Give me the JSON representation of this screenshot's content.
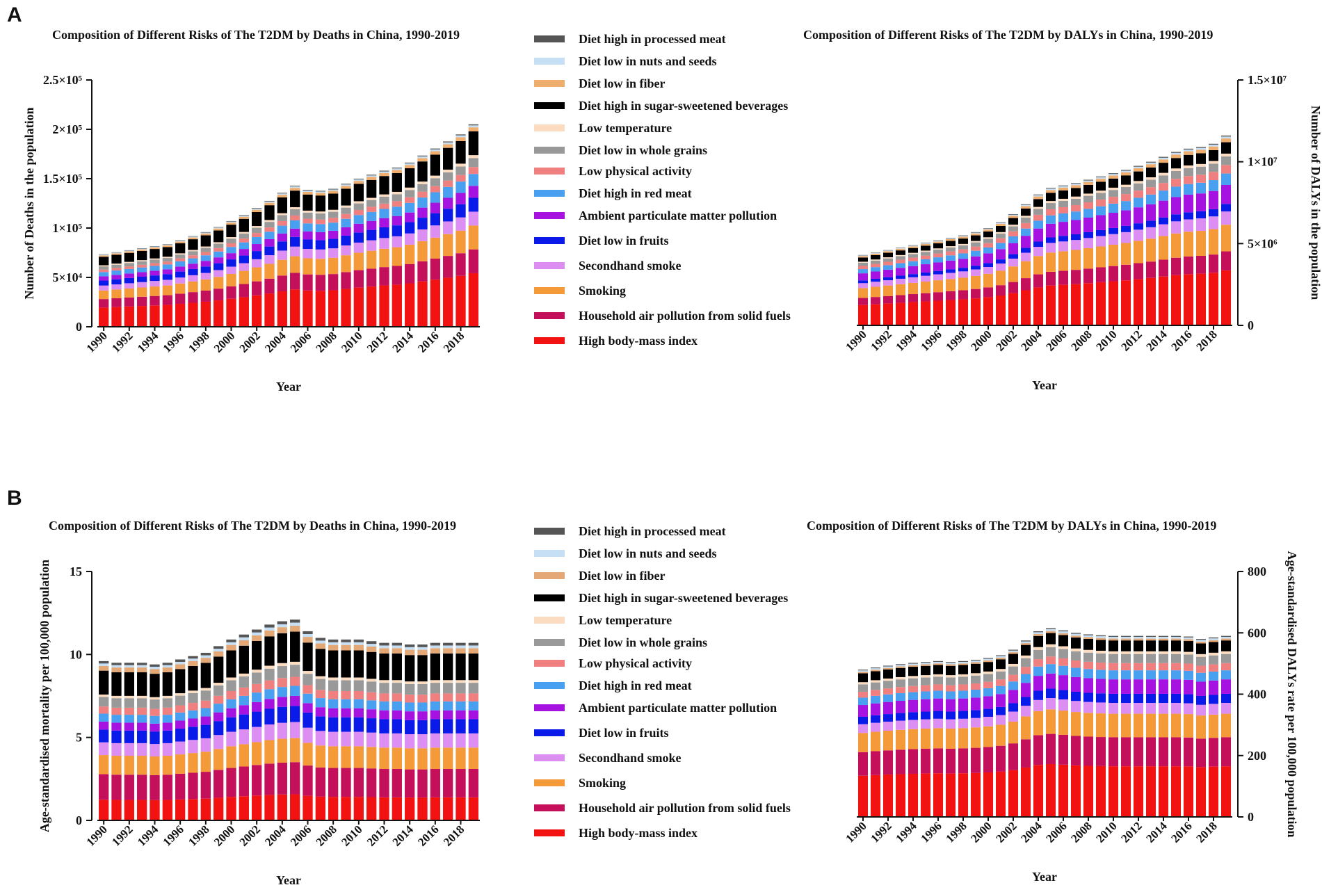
{
  "panels": [
    {
      "letter": "A"
    },
    {
      "letter": "B"
    }
  ],
  "legend_items": [
    {
      "label": "Diet high in processed meat",
      "color": "#555555"
    },
    {
      "label": "Diet low in nuts and seeds",
      "color": "#c6dff5"
    },
    {
      "label": "Diet low in fiber",
      "color": "#f0ae6e"
    },
    {
      "label": "Diet high in sugar-sweetened beverages",
      "color": "#000000"
    },
    {
      "label": "Low temperature",
      "color": "#fbdcc1"
    },
    {
      "label": "Diet low in whole grains",
      "color": "#999999"
    },
    {
      "label": "Low physical activity",
      "color": "#f08080"
    },
    {
      "label": "Diet high in red meat",
      "color": "#4aa0f0"
    },
    {
      "label": "Ambient particulate matter pollution",
      "color": "#a612e0"
    },
    {
      "label": "Diet low in fruits",
      "color": "#0a1ae8"
    },
    {
      "label": "Secondhand smoke",
      "color": "#dc8ef2"
    },
    {
      "label": "Smoking",
      "color": "#f49a38"
    },
    {
      "label": "Household air pollution from solid fuels",
      "color": "#c4105a"
    },
    {
      "label": "High body-mass index",
      "color": "#f21212"
    }
  ],
  "legend_items_b": [
    {
      "label": "Diet high in processed meat",
      "color": "#555555"
    },
    {
      "label": "Diet low in nuts and seeds",
      "color": "#c6dff5"
    },
    {
      "label": "Diet low in fiber",
      "color": "#e3a875"
    },
    {
      "label": "Diet high in sugar-sweetened beverages",
      "color": "#000000"
    },
    {
      "label": "Low temperature",
      "color": "#fbdcc1"
    },
    {
      "label": "Diet low in whole grains",
      "color": "#999999"
    },
    {
      "label": "Low physical activity",
      "color": "#f08080"
    },
    {
      "label": "Diet high in red meat",
      "color": "#4aa0f0"
    },
    {
      "label": "Ambient particulate matter pollution",
      "color": "#a612e0"
    },
    {
      "label": "Diet low in fruits",
      "color": "#0a1ae8"
    },
    {
      "label": "Secondhand smoke",
      "color": "#dc8ef2"
    },
    {
      "label": "Smoking",
      "color": "#f49a38"
    },
    {
      "label": "Household air pollution from solid fuels",
      "color": "#c4105a"
    },
    {
      "label": "High body-mass index",
      "color": "#f21212"
    }
  ],
  "chart_data": [
    {
      "type": "bar",
      "stacked": true,
      "title": "Composition of Different Risks of The T2DM by Deaths in China, 1990-2019",
      "xlabel": "Year",
      "ylabel": "Number of Deaths in the population",
      "ylim": [
        0,
        250000
      ],
      "yticks": [
        0,
        50000,
        100000,
        150000,
        200000,
        250000
      ],
      "ytick_labels": [
        "0",
        "5×10⁴",
        "1×10⁵",
        "1.5×10⁵",
        "2×10⁵",
        "2.5×10⁵"
      ],
      "x": [
        1990,
        1991,
        1992,
        1993,
        1994,
        1995,
        1996,
        1997,
        1998,
        1999,
        2000,
        2001,
        2002,
        2003,
        2004,
        2005,
        2006,
        2007,
        2008,
        2009,
        2010,
        2011,
        2012,
        2013,
        2014,
        2015,
        2016,
        2017,
        2018,
        2019
      ],
      "xtick_labels": [
        "1990",
        "1992",
        "1994",
        "1996",
        "1998",
        "2000",
        "2002",
        "2004",
        "2006",
        "2008",
        "2010",
        "2012",
        "2014",
        "2016",
        "2018"
      ],
      "totals": [
        72000,
        74000,
        76000,
        78000,
        80000,
        82000,
        86000,
        90000,
        94000,
        99000,
        105000,
        111000,
        118000,
        125000,
        133000,
        140000,
        136000,
        135000,
        137000,
        142000,
        147000,
        151000,
        155000,
        158000,
        163000,
        170000,
        177000,
        184000,
        191000,
        201000
      ],
      "shares": [
        0.27,
        0.12,
        0.12,
        0.07,
        0.07,
        0.06,
        0.06,
        0.035,
        0.045,
        0.015,
        0.12,
        0.02,
        0.01,
        0.005
      ]
    },
    {
      "type": "bar",
      "stacked": true,
      "title": "Composition of Different Risks of The T2DM by DALYs in China, 1990-2019",
      "xlabel": "Year",
      "ylabel": "Number of DALYs in the population",
      "ylim": [
        0,
        15000000
      ],
      "yticks": [
        0,
        5000000,
        10000000,
        15000000
      ],
      "ytick_labels": [
        "0",
        "5×10⁶",
        "1×10⁷",
        "1.5×10⁷"
      ],
      "x": [
        1990,
        1991,
        1992,
        1993,
        1994,
        1995,
        1996,
        1997,
        1998,
        1999,
        2000,
        2001,
        2002,
        2003,
        2004,
        2005,
        2006,
        2007,
        2008,
        2009,
        2010,
        2011,
        2012,
        2013,
        2014,
        2015,
        2016,
        2017,
        2018,
        2019
      ],
      "xtick_labels": [
        "1990",
        "1992",
        "1994",
        "1996",
        "1998",
        "2000",
        "2002",
        "2004",
        "2006",
        "2008",
        "2010",
        "2012",
        "2014",
        "2016",
        "2018"
      ],
      "totals": [
        4300000,
        4450000,
        4600000,
        4750000,
        4900000,
        5050000,
        5200000,
        5350000,
        5500000,
        5700000,
        5950000,
        6300000,
        6800000,
        7400000,
        8000000,
        8400000,
        8550000,
        8700000,
        8900000,
        9100000,
        9300000,
        9500000,
        9750000,
        10000000,
        10300000,
        10600000,
        10800000,
        10900000,
        11100000,
        11600000
      ],
      "shares": [
        0.29,
        0.1,
        0.14,
        0.07,
        0.04,
        0.1,
        0.06,
        0.045,
        0.045,
        0.015,
        0.06,
        0.02,
        0.01,
        0.005
      ]
    },
    {
      "type": "bar",
      "stacked": true,
      "title": "Composition of Different Risks of The T2DM by Deaths in China, 1990-2019",
      "xlabel": "Year",
      "ylabel": "Age-standardised mortality per 100,000 population",
      "ylim": [
        0,
        15
      ],
      "yticks": [
        0,
        5,
        10,
        15
      ],
      "ytick_labels": [
        "0",
        "5",
        "10",
        "15"
      ],
      "x": [
        1990,
        1991,
        1992,
        1993,
        1994,
        1995,
        1996,
        1997,
        1998,
        1999,
        2000,
        2001,
        2002,
        2003,
        2004,
        2005,
        2006,
        2007,
        2008,
        2009,
        2010,
        2011,
        2012,
        2013,
        2014,
        2015,
        2016,
        2017,
        2018,
        2019
      ],
      "xtick_labels": [
        "1990",
        "1992",
        "1994",
        "1996",
        "1998",
        "2000",
        "2002",
        "2004",
        "2006",
        "2008",
        "2010",
        "2012",
        "2014",
        "2016",
        "2018"
      ],
      "totals": [
        9.6,
        9.5,
        9.5,
        9.5,
        9.4,
        9.5,
        9.7,
        9.9,
        10.1,
        10.5,
        10.9,
        11.2,
        11.5,
        11.8,
        12,
        12.1,
        11.4,
        11,
        10.9,
        10.9,
        10.9,
        10.8,
        10.7,
        10.7,
        10.6,
        10.6,
        10.7,
        10.7,
        10.7,
        10.7
      ],
      "shares": [
        0.13,
        0.16,
        0.12,
        0.08,
        0.08,
        0.05,
        0.05,
        0.045,
        0.06,
        0.015,
        0.15,
        0.03,
        0.015,
        0.015
      ]
    },
    {
      "type": "bar",
      "stacked": true,
      "title": "Composition of Different Risks of The T2DM by DALYs in China, 1990-2019",
      "xlabel": "Year",
      "ylabel": "Age-standardised DALYs rate per 100,000 population",
      "ylim": [
        0,
        800
      ],
      "yticks": [
        0,
        200,
        400,
        600,
        800
      ],
      "ytick_labels": [
        "0",
        "200",
        "400",
        "600",
        "800"
      ],
      "x": [
        1990,
        1991,
        1992,
        1993,
        1994,
        1995,
        1996,
        1997,
        1998,
        1999,
        2000,
        2001,
        2002,
        2003,
        2004,
        2005,
        2006,
        2007,
        2008,
        2009,
        2010,
        2011,
        2012,
        2013,
        2014,
        2015,
        2016,
        2017,
        2018,
        2019
      ],
      "xtick_labels": [
        "1990",
        "1992",
        "1994",
        "1996",
        "1998",
        "2000",
        "2002",
        "2004",
        "2006",
        "2008",
        "2010",
        "2012",
        "2014",
        "2016",
        "2018"
      ],
      "totals": [
        480,
        487,
        493,
        498,
        502,
        505,
        508,
        505,
        508,
        512,
        518,
        527,
        545,
        575,
        605,
        615,
        608,
        600,
        595,
        592,
        590,
        590,
        590,
        590,
        590,
        590,
        588,
        580,
        585,
        590
      ],
      "shares": [
        0.28,
        0.16,
        0.13,
        0.06,
        0.05,
        0.08,
        0.05,
        0.04,
        0.05,
        0.015,
        0.06,
        0.01,
        0.01,
        0.005
      ]
    }
  ]
}
